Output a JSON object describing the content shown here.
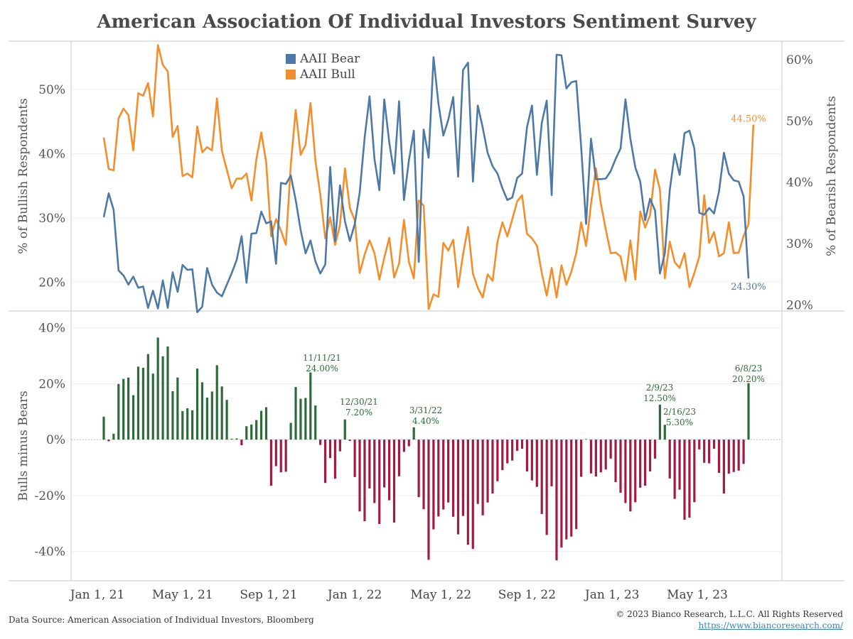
{
  "title": "American Association Of Individual Investors Sentiment Survey",
  "footer": {
    "source": "Data Source: American Association of Individual Investors, Bloomberg",
    "copyright": "© 2023 Bianco Research, L.L.C. All Rights Reserved",
    "link": "https://www.biancoresearch.com/"
  },
  "colors": {
    "bull": "#f28e2b",
    "bear": "#4e79a7",
    "positive": "#2e6b3a",
    "negative": "#a01c44"
  },
  "chart_data": [
    {
      "type": "line",
      "ylabel_left": "% of Bullish Respondents",
      "ylabel_right": "% of Bearish Respondents",
      "yticks_left": [
        "20%",
        "30%",
        "40%",
        "50%"
      ],
      "yticks_right": [
        "20%",
        "30%",
        "40%",
        "50%",
        "60%"
      ],
      "ylim_left": [
        15.5,
        57.5
      ],
      "ylim_right": [
        19,
        63
      ],
      "legend_position": "top-center",
      "series": [
        {
          "name": "AAII Bull",
          "axis": "left",
          "end_label": "44.50%",
          "values": [
            42.5,
            37.6,
            37.4,
            45.5,
            47,
            46,
            40.5,
            49.4,
            49,
            51,
            45.8,
            56.9,
            53.8,
            52.8,
            42.6,
            44.3,
            36.5,
            36.9,
            36.3,
            44.2,
            40.2,
            41,
            40.5,
            48.6,
            40.4,
            37.5,
            34.6,
            36.1,
            36.1,
            36.9,
            32.7,
            39.1,
            43.3,
            38.6,
            27.1,
            29.8,
            28,
            25.8,
            38.3,
            46.8,
            39.8,
            41.4,
            47.9,
            38.9,
            33.6,
            26.8,
            30.1,
            25.8,
            28.9,
            37.7,
            31.5,
            29.6,
            21.4,
            24.3,
            26.5,
            24.5,
            20.4,
            23.8,
            26.9,
            20.7,
            22.9,
            29.7,
            23.1,
            20.6,
            32.7,
            31.9,
            15.8,
            18.1,
            17.7,
            26.1,
            24.9,
            26.6,
            19.2,
            24.3,
            28.6,
            21.3,
            19.1,
            17.6,
            21.2,
            20.2,
            26.3,
            29.3,
            27.1,
            29.8,
            32.6,
            33.5,
            27.5,
            26.8,
            25.7,
            21.4,
            17.9,
            22.2,
            17.6,
            22.6,
            19.6,
            21.6,
            24.5,
            29.3,
            25.6,
            32.1,
            37.7,
            32.2,
            28.2,
            24.5,
            24.6,
            24,
            20.2,
            26.5,
            20.4,
            31,
            28.5,
            30.4,
            37.5,
            34.4,
            20.6,
            26.3,
            23.1,
            22.2,
            24.5,
            19.2,
            21.4,
            24,
            33.5,
            26.1,
            27.8,
            24,
            24.5,
            29.3,
            24.5,
            24.6,
            27.2,
            29,
            44.5
          ]
        },
        {
          "name": "AAII Bear",
          "axis": "right",
          "end_label": "24.30%",
          "values": [
            34.3,
            38.2,
            35.5,
            25.6,
            24.8,
            23.3,
            24.6,
            22.8,
            23,
            19.5,
            22.3,
            19.4,
            24,
            19.5,
            25.3,
            22.1,
            26.5,
            25.7,
            25.8,
            18.8,
            19.7,
            26,
            23.3,
            22,
            21.4,
            23.3,
            25.2,
            27.3,
            31.2,
            23.6,
            31.6,
            31.7,
            35.2,
            33.3,
            33.6,
            26.7,
            39.9,
            39.7,
            41.1,
            37.1,
            32.2,
            28.4,
            30.5,
            27.1,
            25.1,
            26.6,
            42.5,
            30.4,
            39.5,
            33.6,
            30.4,
            33.2,
            38.3,
            47.3,
            54,
            43.8,
            38.7,
            53.5,
            46.5,
            41.4,
            53.2,
            37.1,
            43.6,
            48.4,
            27,
            48.6,
            44,
            60.4,
            52.8,
            47.6,
            50.2,
            53.9,
            40.9,
            58.3,
            59.5,
            40.1,
            52.5,
            48.9,
            44.8,
            42.6,
            41.4,
            39,
            37.1,
            37.5,
            40.7,
            41.4,
            49,
            52.5,
            41.2,
            49.7,
            53.3,
            37.9,
            60.8,
            60.7,
            55.3,
            56.3,
            56.5,
            45.7,
            33.2,
            47.1,
            40.5,
            40.5,
            40.6,
            41.8,
            43.8,
            45.5,
            53.5,
            47.1,
            42.4,
            40.1,
            33.8,
            37.3,
            35.4,
            25.1,
            28.4,
            38.7,
            44.6,
            41.2,
            48,
            48.4,
            45.5,
            35,
            34.7,
            35.8,
            34.9,
            38.5,
            44.8,
            41.4,
            40.3,
            40.1,
            37.7,
            24.3
          ]
        }
      ]
    },
    {
      "type": "bar",
      "ylabel": "Bulls minus Bears",
      "yticks": [
        "40%",
        "20%",
        "0%",
        "-20%",
        "-40%"
      ],
      "ylim": [
        -50.5,
        46
      ],
      "annotations": [
        {
          "date": "11/11/21",
          "value": "24.00%"
        },
        {
          "date": "12/30/21",
          "value": "7.20%"
        },
        {
          "date": "3/31/22",
          "value": "4.40%"
        },
        {
          "date": "2/9/23",
          "value": "12.50%"
        },
        {
          "date": "2/16/23",
          "value": "5.30%"
        },
        {
          "date": "6/8/23",
          "value": "20.20%"
        }
      ],
      "values": [
        8.2,
        -0.6,
        2.1,
        19.9,
        21.7,
        22.2,
        15.9,
        26.1,
        25.7,
        30.6,
        23.6,
        36.5,
        29.8,
        33.3,
        17.3,
        22.2,
        10.2,
        11.2,
        10.5,
        25.4,
        20.5,
        15,
        17.2,
        26.6,
        19,
        14.2,
        0.3,
        0.4,
        -2,
        4.8,
        5.4,
        7,
        10.3,
        11.6,
        -16.5,
        -9.5,
        -11.7,
        -11.5,
        6,
        18.8,
        14.6,
        14.9,
        24,
        12.2,
        -1.9,
        -15.5,
        -6.6,
        -14,
        -4.2,
        7.2,
        -0.5,
        -13.4,
        -25.7,
        -29.2,
        -17.5,
        -22.7,
        -30.2,
        -17.1,
        -21.7,
        -29.7,
        -13.1,
        -4.4,
        -2.4,
        4.4,
        -20.6,
        -24.9,
        -43,
        -32.1,
        -27.5,
        -25,
        -22.5,
        -27.6,
        -33.9,
        -27.3,
        -37.6,
        -39.1,
        -23,
        -27.1,
        -22.5,
        -19.3,
        -14.9,
        -10.9,
        -8.5,
        -7.5,
        -4,
        -3.3,
        -11.4,
        -14.6,
        -16.9,
        -26.6,
        -34.1,
        -16.7,
        -43.2,
        -38.6,
        -35.7,
        -34.7,
        -32,
        -13.3,
        0.2,
        -12.1,
        -13.2,
        -11.7,
        -10.7,
        -6.8,
        -15.2,
        -19,
        -22.7,
        -25.7,
        -22.4,
        -17.2,
        -16.5,
        -11.4,
        -6.8,
        12.5,
        5.3,
        -13.9,
        -21.2,
        -17.9,
        -28.7,
        -27.9,
        -22.4,
        -3.5,
        -8.3,
        -8.5,
        -3.3,
        -11.9,
        -19.3,
        -12.2,
        -11.6,
        -11.1,
        -8.7,
        20.2
      ]
    }
  ],
  "x_axis": {
    "ticks": [
      "Jan 1, 21",
      "May 1, 21",
      "Sep 1, 21",
      "Jan 1, 22",
      "May 1, 22",
      "Sep 1, 22",
      "Jan 1, 23",
      "May 1, 23"
    ]
  }
}
